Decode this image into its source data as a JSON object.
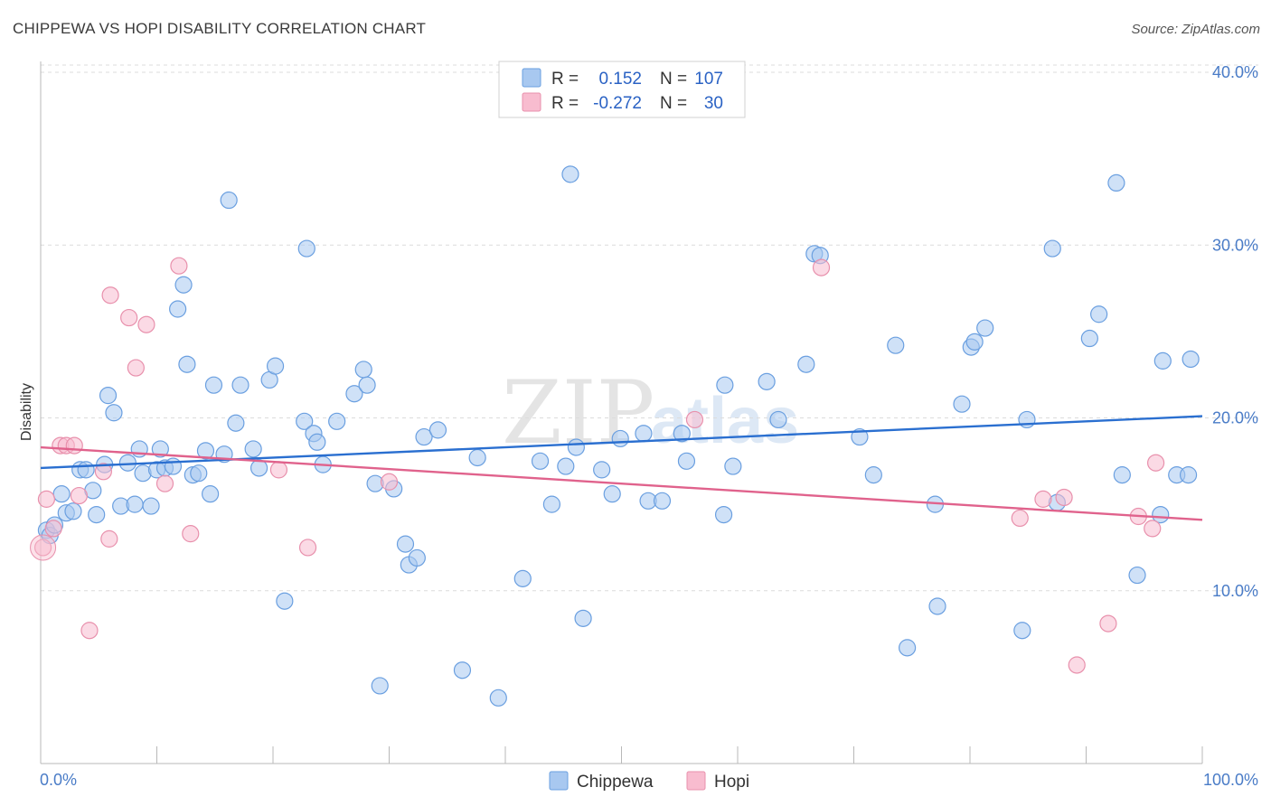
{
  "title": "CHIPPEWA VS HOPI DISABILITY CORRELATION CHART",
  "source": "Source: ZipAtlas.com",
  "watermark": {
    "zip": "ZIP",
    "atlas": "atlas"
  },
  "legend": {
    "rows": [
      {
        "r_label": "R =",
        "r_value": "0.152",
        "n_label": "N =",
        "n_value": "107",
        "color": "#a8c8f0",
        "stroke": "#6a9fe0"
      },
      {
        "r_label": "R =",
        "r_value": "-0.272",
        "n_label": "N =",
        "n_value": "30",
        "color": "#f8bccf",
        "stroke": "#e890ac"
      }
    ]
  },
  "bottom_legend": [
    {
      "label": "Chippewa",
      "color": "#a8c8f0",
      "stroke": "#6a9fe0"
    },
    {
      "label": "Hopi",
      "color": "#f8bccf",
      "stroke": "#e890ac"
    }
  ],
  "chart_data": {
    "type": "scatter",
    "title": "CHIPPEWA VS HOPI DISABILITY CORRELATION CHART",
    "xlabel": "",
    "ylabel": "Disability",
    "xlim": [
      0,
      100
    ],
    "ylim": [
      0,
      40
    ],
    "x_tick_labels": [
      "0.0%",
      "100.0%"
    ],
    "y_ticks": [
      10,
      20,
      30,
      40
    ],
    "y_tick_labels": [
      "10.0%",
      "20.0%",
      "30.0%",
      "40.0%"
    ],
    "grid": true,
    "legend_position": "top-center",
    "series": [
      {
        "name": "Chippewa",
        "color": "#a8c8f0",
        "stroke": "#6a9fe0",
        "line_color": "#2a6fd0",
        "trend": [
          [
            0,
            17.1
          ],
          [
            100,
            20.1
          ]
        ],
        "points": [
          [
            0.5,
            13.5
          ],
          [
            0.8,
            13.2
          ],
          [
            1.2,
            13.8
          ],
          [
            1.8,
            15.6
          ],
          [
            2.2,
            14.5
          ],
          [
            2.8,
            14.6
          ],
          [
            3.4,
            17.0
          ],
          [
            3.9,
            17.0
          ],
          [
            4.5,
            15.8
          ],
          [
            4.8,
            14.4
          ],
          [
            5.5,
            17.3
          ],
          [
            5.8,
            21.3
          ],
          [
            6.3,
            20.3
          ],
          [
            6.9,
            14.9
          ],
          [
            7.5,
            17.4
          ],
          [
            8.1,
            15.0
          ],
          [
            8.5,
            18.2
          ],
          [
            8.8,
            16.8
          ],
          [
            9.5,
            14.9
          ],
          [
            10.0,
            17.0
          ],
          [
            10.3,
            18.2
          ],
          [
            10.7,
            17.1
          ],
          [
            11.4,
            17.2
          ],
          [
            11.8,
            26.3
          ],
          [
            12.3,
            27.7
          ],
          [
            12.6,
            23.1
          ],
          [
            13.1,
            16.7
          ],
          [
            13.6,
            16.8
          ],
          [
            14.2,
            18.1
          ],
          [
            14.6,
            15.6
          ],
          [
            14.9,
            21.9
          ],
          [
            15.8,
            17.9
          ],
          [
            16.2,
            32.6
          ],
          [
            16.8,
            19.7
          ],
          [
            17.2,
            21.9
          ],
          [
            18.3,
            18.2
          ],
          [
            18.8,
            17.1
          ],
          [
            19.7,
            22.2
          ],
          [
            20.2,
            23.0
          ],
          [
            21.0,
            9.4
          ],
          [
            22.7,
            19.8
          ],
          [
            22.9,
            29.8
          ],
          [
            23.5,
            19.1
          ],
          [
            23.8,
            18.6
          ],
          [
            24.3,
            17.3
          ],
          [
            25.5,
            19.8
          ],
          [
            27.0,
            21.4
          ],
          [
            27.8,
            22.8
          ],
          [
            28.1,
            21.9
          ],
          [
            28.8,
            16.2
          ],
          [
            29.2,
            4.5
          ],
          [
            30.4,
            15.9
          ],
          [
            31.4,
            12.7
          ],
          [
            31.7,
            11.5
          ],
          [
            32.4,
            11.9
          ],
          [
            33.0,
            18.9
          ],
          [
            34.2,
            19.3
          ],
          [
            36.3,
            5.4
          ],
          [
            37.6,
            17.7
          ],
          [
            39.4,
            3.8
          ],
          [
            41.5,
            10.7
          ],
          [
            43.0,
            17.5
          ],
          [
            44.0,
            15.0
          ],
          [
            45.2,
            17.2
          ],
          [
            45.6,
            34.1
          ],
          [
            46.1,
            18.3
          ],
          [
            46.7,
            8.4
          ],
          [
            48.3,
            17.0
          ],
          [
            49.2,
            15.6
          ],
          [
            49.9,
            18.8
          ],
          [
            51.9,
            19.1
          ],
          [
            52.3,
            15.2
          ],
          [
            53.5,
            15.2
          ],
          [
            55.2,
            19.1
          ],
          [
            55.6,
            17.5
          ],
          [
            58.8,
            14.4
          ],
          [
            58.9,
            21.9
          ],
          [
            59.6,
            17.2
          ],
          [
            62.5,
            22.1
          ],
          [
            63.5,
            19.9
          ],
          [
            65.9,
            23.1
          ],
          [
            66.6,
            29.5
          ],
          [
            67.1,
            29.4
          ],
          [
            70.5,
            18.9
          ],
          [
            71.7,
            16.7
          ],
          [
            73.6,
            24.2
          ],
          [
            74.6,
            6.7
          ],
          [
            77.0,
            15.0
          ],
          [
            77.2,
            9.1
          ],
          [
            79.3,
            20.8
          ],
          [
            80.1,
            24.1
          ],
          [
            80.4,
            24.4
          ],
          [
            81.3,
            25.2
          ],
          [
            84.5,
            7.7
          ],
          [
            84.9,
            19.9
          ],
          [
            87.1,
            29.8
          ],
          [
            87.5,
            15.1
          ],
          [
            90.3,
            24.6
          ],
          [
            91.1,
            26.0
          ],
          [
            92.6,
            33.6
          ],
          [
            93.1,
            16.7
          ],
          [
            94.4,
            10.9
          ],
          [
            96.4,
            14.4
          ],
          [
            96.6,
            23.3
          ],
          [
            97.8,
            16.7
          ],
          [
            98.8,
            16.7
          ],
          [
            99.0,
            23.4
          ]
        ]
      },
      {
        "name": "Hopi",
        "color": "#f8bccf",
        "stroke": "#e890ac",
        "line_color": "#e0628c",
        "trend": [
          [
            0,
            18.3
          ],
          [
            100,
            14.1
          ]
        ],
        "points": [
          [
            0.2,
            12.5
          ],
          [
            0.5,
            15.3
          ],
          [
            1.1,
            13.6
          ],
          [
            1.7,
            18.4
          ],
          [
            2.2,
            18.4
          ],
          [
            2.9,
            18.4
          ],
          [
            3.3,
            15.5
          ],
          [
            4.2,
            7.7
          ],
          [
            5.4,
            16.9
          ],
          [
            5.9,
            13.0
          ],
          [
            6.0,
            27.1
          ],
          [
            7.6,
            25.8
          ],
          [
            8.2,
            22.9
          ],
          [
            9.1,
            25.4
          ],
          [
            10.7,
            16.2
          ],
          [
            11.9,
            28.8
          ],
          [
            12.9,
            13.3
          ],
          [
            20.5,
            17.0
          ],
          [
            23.0,
            12.5
          ],
          [
            30.0,
            16.3
          ],
          [
            56.3,
            19.9
          ],
          [
            67.2,
            28.7
          ],
          [
            84.3,
            14.2
          ],
          [
            86.3,
            15.3
          ],
          [
            88.1,
            15.4
          ],
          [
            89.2,
            5.7
          ],
          [
            91.9,
            8.1
          ],
          [
            94.5,
            14.3
          ],
          [
            95.7,
            13.6
          ],
          [
            96.0,
            17.4
          ]
        ]
      }
    ]
  }
}
